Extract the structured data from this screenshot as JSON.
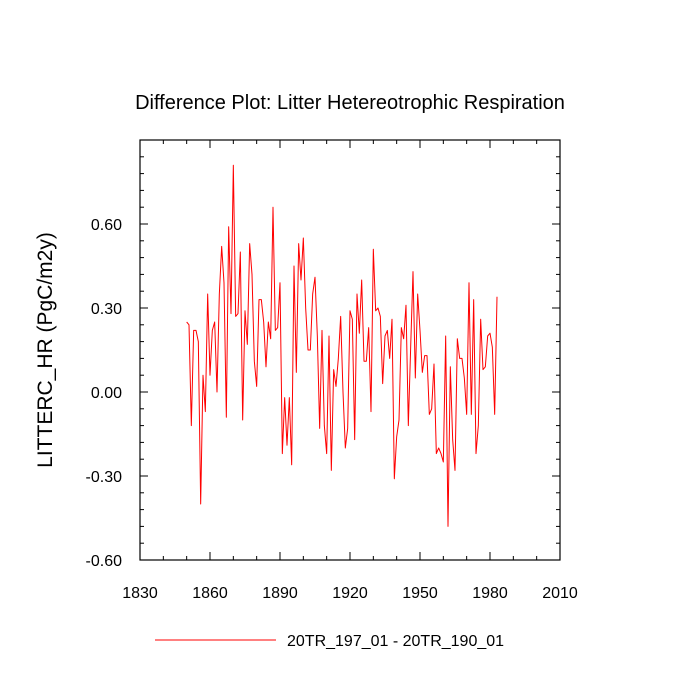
{
  "chart_data": {
    "type": "line",
    "title": "Difference Plot: Litter Hetereotrophic Respiration",
    "xlabel": "",
    "ylabel": "LITTERC_HR  (PgC/m2y)",
    "xlim": [
      1830,
      2010
    ],
    "ylim": [
      -0.6,
      0.9
    ],
    "x_ticks": [
      1830,
      1860,
      1890,
      1920,
      1950,
      1980,
      2010
    ],
    "x_tick_labels": [
      "1830",
      "1860",
      "1890",
      "1920",
      "1950",
      "1980",
      "2010"
    ],
    "y_ticks": [
      -0.6,
      -0.3,
      0.0,
      0.3,
      0.6
    ],
    "y_tick_labels": [
      "-0.60",
      "-0.30",
      "0.00",
      "0.30",
      "0.60"
    ],
    "grid": false,
    "legend_position": "bottom-center",
    "series": [
      {
        "name": "20TR_197_01 - 20TR_190_01",
        "color": "#ff0000",
        "x_start": 1850,
        "x_step": 1,
        "values": [
          0.25,
          0.24,
          -0.12,
          0.22,
          0.22,
          0.18,
          -0.4,
          0.06,
          -0.07,
          0.35,
          0.06,
          0.22,
          0.25,
          0.0,
          0.35,
          0.52,
          0.39,
          -0.09,
          0.59,
          0.28,
          0.81,
          0.27,
          0.28,
          0.5,
          -0.1,
          0.29,
          0.17,
          0.53,
          0.42,
          0.11,
          0.02,
          0.33,
          0.33,
          0.25,
          0.09,
          0.25,
          0.19,
          0.66,
          0.22,
          0.23,
          0.39,
          -0.22,
          -0.02,
          -0.19,
          -0.02,
          -0.26,
          0.45,
          0.07,
          0.53,
          0.4,
          0.55,
          0.3,
          0.15,
          0.15,
          0.35,
          0.41,
          0.2,
          -0.13,
          0.22,
          -0.12,
          -0.22,
          0.2,
          -0.28,
          0.08,
          0.02,
          0.12,
          0.27,
          0.0,
          -0.2,
          -0.13,
          0.29,
          0.26,
          -0.17,
          0.35,
          0.21,
          0.4,
          0.11,
          0.11,
          0.23,
          -0.07,
          0.51,
          0.29,
          0.3,
          0.27,
          0.03,
          0.2,
          0.22,
          0.12,
          0.26,
          -0.31,
          -0.16,
          -0.1,
          0.23,
          0.19,
          0.31,
          -0.12,
          0.16,
          0.43,
          0.05,
          0.35,
          0.22,
          0.07,
          0.13,
          0.13,
          -0.08,
          -0.06,
          0.1,
          -0.22,
          -0.2,
          -0.22,
          -0.25,
          0.2,
          -0.48,
          0.09,
          -0.17,
          -0.28,
          0.19,
          0.12,
          0.12,
          0.05,
          -0.08,
          0.39,
          -0.08,
          0.33,
          -0.22,
          -0.12,
          0.26,
          0.08,
          0.09,
          0.2,
          0.21,
          0.16,
          -0.08,
          0.34
        ]
      }
    ]
  }
}
